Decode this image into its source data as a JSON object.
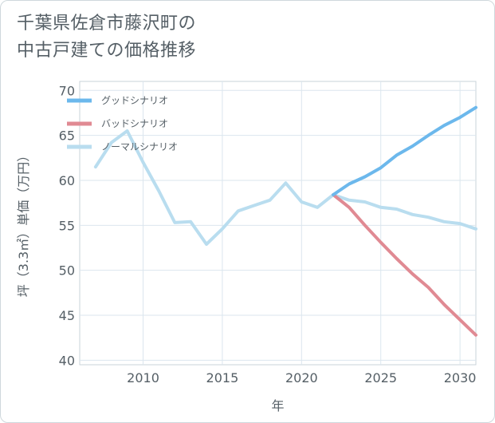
{
  "chart": {
    "title_line1": "千葉県佐倉市藤沢町の",
    "title_line2": "中古戸建ての価格推移"
  },
  "chart_data": {
    "type": "line",
    "title": "千葉県佐倉市藤沢町の中古戸建ての価格推移",
    "xlabel": "年",
    "ylabel": "坪（3.3㎡）単価（万円）",
    "xlim": [
      2006,
      2031
    ],
    "ylim": [
      39.5,
      71
    ],
    "x_ticks": [
      2010,
      2015,
      2020,
      2025,
      2030
    ],
    "y_ticks": [
      40,
      45,
      50,
      55,
      60,
      65,
      70
    ],
    "grid": true,
    "legend_position": "top-left",
    "series": [
      {
        "name": "グッドシナリオ",
        "color": "#6cb8ec",
        "x": [
          2022,
          2023,
          2024,
          2025,
          2026,
          2027,
          2028,
          2029,
          2030,
          2031
        ],
        "y": [
          58.4,
          59.6,
          60.4,
          61.4,
          62.8,
          63.8,
          65.0,
          66.1,
          67.0,
          68.1
        ]
      },
      {
        "name": "バッドシナリオ",
        "color": "#e08a93",
        "x": [
          2022,
          2023,
          2024,
          2025,
          2026,
          2027,
          2028,
          2029,
          2030,
          2031
        ],
        "y": [
          58.4,
          57.0,
          55.0,
          53.1,
          51.3,
          49.6,
          48.1,
          46.2,
          44.5,
          42.8
        ]
      },
      {
        "name": "ノーマルシナリオ",
        "color": "#b9ddef",
        "x": [
          2007,
          2008,
          2009,
          2010,
          2011,
          2012,
          2013,
          2014,
          2015,
          2016,
          2017,
          2018,
          2019,
          2020,
          2021,
          2022,
          2023,
          2024,
          2025,
          2026,
          2027,
          2028,
          2029,
          2030,
          2031
        ],
        "y": [
          61.5,
          64.2,
          65.5,
          62.0,
          58.8,
          55.3,
          55.4,
          52.9,
          54.6,
          56.6,
          57.2,
          57.8,
          59.7,
          57.6,
          57.0,
          58.4,
          57.8,
          57.6,
          57.0,
          56.8,
          56.2,
          55.9,
          55.4,
          55.2,
          54.6
        ]
      }
    ]
  }
}
